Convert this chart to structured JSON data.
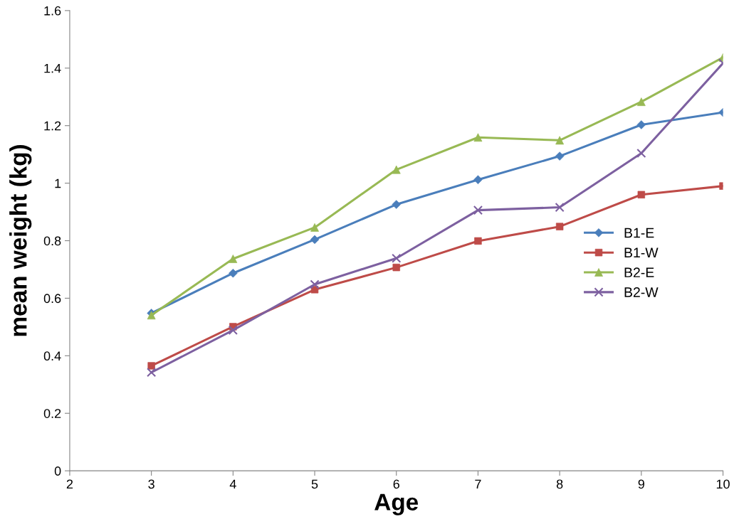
{
  "chart_data": {
    "type": "line",
    "xlabel": "Age",
    "ylabel": "mean weight (kg)",
    "x": [
      3,
      4,
      5,
      6,
      7,
      8,
      9,
      10
    ],
    "series": [
      {
        "name": "B1-E",
        "color": "#4a7ebb",
        "marker": "diamond",
        "values": [
          0.548,
          0.687,
          0.804,
          0.926,
          1.012,
          1.094,
          1.203,
          1.246
        ]
      },
      {
        "name": "B1-W",
        "color": "#be4b48",
        "marker": "square",
        "values": [
          0.365,
          0.501,
          0.63,
          0.707,
          0.799,
          0.849,
          0.96,
          0.99
        ]
      },
      {
        "name": "B2-E",
        "color": "#98b954",
        "marker": "triangle",
        "values": [
          0.541,
          0.737,
          0.846,
          1.047,
          1.159,
          1.149,
          1.283,
          1.437
        ]
      },
      {
        "name": "B2-W",
        "color": "#7d60a0",
        "marker": "cross",
        "values": [
          0.342,
          0.489,
          0.648,
          0.739,
          0.906,
          0.916,
          1.104,
          1.417
        ]
      }
    ],
    "xlim": [
      2,
      10
    ],
    "xticks": [
      2,
      3,
      4,
      5,
      6,
      7,
      8,
      9,
      10
    ],
    "ylim": [
      0,
      1.6
    ],
    "yticks": [
      0,
      0.2,
      0.4,
      0.6,
      0.8,
      1,
      1.2,
      1.4,
      1.6
    ],
    "grid": false,
    "legend": "right",
    "line_style": "solid"
  }
}
